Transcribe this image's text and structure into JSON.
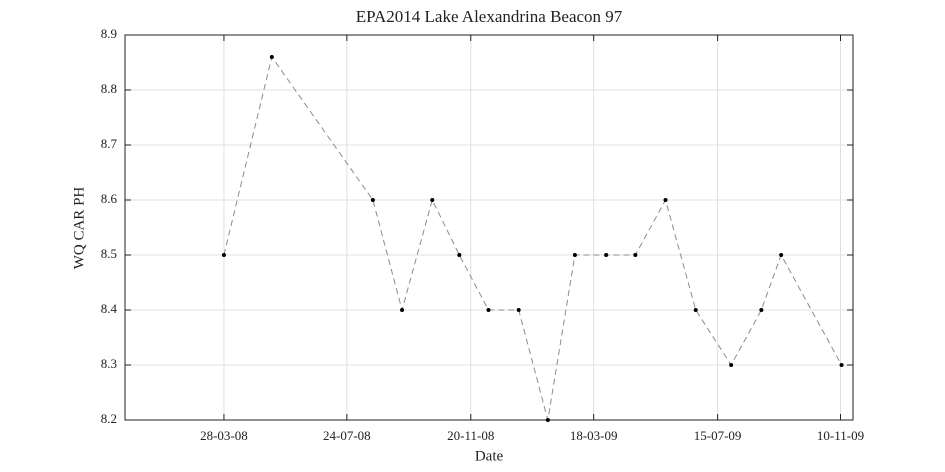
{
  "chart_data": {
    "type": "line",
    "title": "EPA2014 Lake Alexandrina Beacon 97",
    "xlabel": "Date",
    "ylabel": "WQ CAR PH",
    "x": [
      "28-03-08",
      "13-05-08",
      "18-08-08",
      "15-09-08",
      "14-10-08",
      "09-11-08",
      "07-12-08",
      "05-01-09",
      "02-02-09",
      "28-02-09",
      "30-03-09",
      "27-04-09",
      "26-05-09",
      "24-06-09",
      "28-07-09",
      "26-08-09",
      "14-09-09",
      "11-11-09"
    ],
    "series": [
      {
        "name": "WQ CAR PH",
        "color": "#8c8c8c",
        "marker_color": "#000000",
        "values": [
          8.5,
          8.86,
          8.6,
          8.4,
          8.6,
          8.5,
          8.4,
          8.4,
          8.2,
          8.5,
          8.5,
          8.5,
          8.6,
          8.4,
          8.3,
          8.4,
          8.5,
          8.3
        ]
      }
    ],
    "xlim": [
      "24-12-07",
      "22-11-09"
    ],
    "xticks": [
      "28-03-08",
      "24-07-08",
      "20-11-08",
      "18-03-09",
      "15-07-09",
      "10-11-09"
    ],
    "ylim": [
      8.2,
      8.9
    ],
    "yticks": [
      8.2,
      8.3,
      8.4,
      8.5,
      8.6,
      8.7,
      8.8,
      8.9
    ],
    "grid": true
  }
}
